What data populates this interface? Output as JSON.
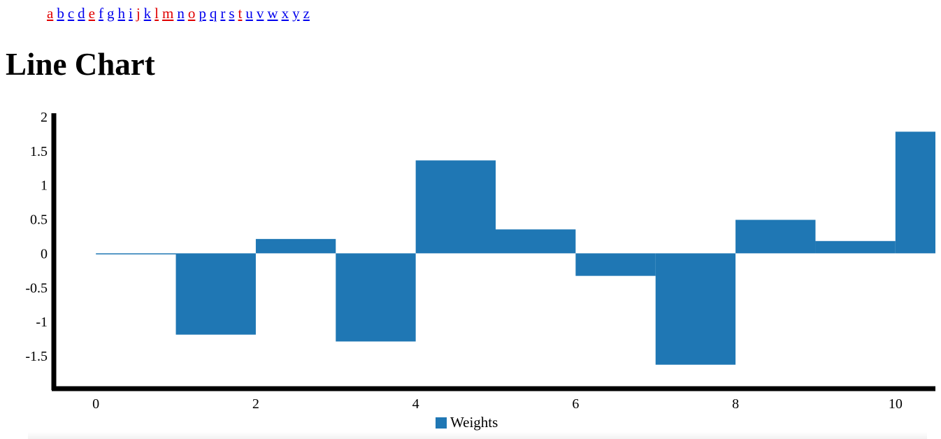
{
  "nav": {
    "letters": [
      {
        "label": "a",
        "color": "#e00000"
      },
      {
        "label": "b",
        "color": "#0000ee"
      },
      {
        "label": "c",
        "color": "#0000ee"
      },
      {
        "label": "d",
        "color": "#0000ee"
      },
      {
        "label": "e",
        "color": "#e00000"
      },
      {
        "label": "f",
        "color": "#0000ee"
      },
      {
        "label": "g",
        "color": "#0000ee"
      },
      {
        "label": "h",
        "color": "#0000ee"
      },
      {
        "label": "i",
        "color": "#0000ee"
      },
      {
        "label": "j",
        "color": "#e00000"
      },
      {
        "label": "k",
        "color": "#0000ee"
      },
      {
        "label": "l",
        "color": "#e00000"
      },
      {
        "label": "m",
        "color": "#e00000"
      },
      {
        "label": "n",
        "color": "#0000ee"
      },
      {
        "label": "o",
        "color": "#e00000"
      },
      {
        "label": "p",
        "color": "#0000ee"
      },
      {
        "label": "q",
        "color": "#0000ee"
      },
      {
        "label": "r",
        "color": "#0000ee"
      },
      {
        "label": "s",
        "color": "#0000ee"
      },
      {
        "label": "t",
        "color": "#e00000"
      },
      {
        "label": "u",
        "color": "#0000ee"
      },
      {
        "label": "v",
        "color": "#0000ee"
      },
      {
        "label": "w",
        "color": "#0000ee"
      },
      {
        "label": "x",
        "color": "#0000ee"
      },
      {
        "label": "y",
        "color": "#0000ee"
      },
      {
        "label": "z",
        "color": "#0000ee"
      }
    ]
  },
  "page": {
    "title": "Line Chart"
  },
  "chart_data": {
    "type": "area",
    "interpolation": "step",
    "title": "",
    "xlabel": "",
    "ylabel": "",
    "series": [
      {
        "name": "Weights",
        "color": "#1f77b4",
        "x": [
          0,
          1,
          2,
          3,
          4,
          5,
          6,
          7,
          8,
          9,
          10
        ],
        "values": [
          -0.01,
          -1.19,
          0.21,
          -1.29,
          1.36,
          0.35,
          -0.33,
          -1.63,
          0.49,
          0.18,
          1.78
        ]
      }
    ],
    "xlim": [
      -0.5,
      10.5
    ],
    "ylim": [
      -1.95,
      2.05
    ],
    "x_ticks": [
      "0",
      "2",
      "4",
      "6",
      "8",
      "10"
    ],
    "y_ticks": [
      "2",
      "1.5",
      "1",
      "0.5",
      "0",
      "-0.5",
      "-1",
      "-1.5"
    ],
    "grid": false,
    "legend": "bottom-center",
    "axis_color": "#000000"
  }
}
